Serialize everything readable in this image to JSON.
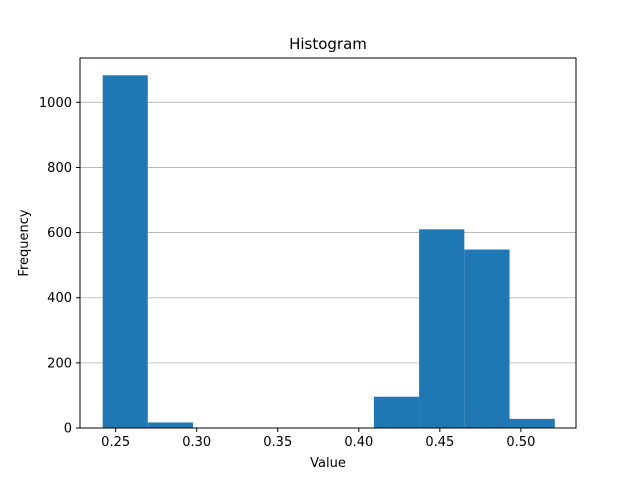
{
  "chart_data": {
    "type": "bar",
    "title": "Histogram",
    "xlabel": "Value",
    "ylabel": "Frequency",
    "xlim": [
      0.228,
      0.534
    ],
    "ylim": [
      0,
      1136
    ],
    "grid": {
      "x": false,
      "y": true
    },
    "bar_color": "#1f77b4",
    "grid_color": "#b0b0b0",
    "bins": [
      {
        "x0": 0.242,
        "x1": 0.2698,
        "count": 1083
      },
      {
        "x0": 0.2698,
        "x1": 0.2977,
        "count": 17
      },
      {
        "x0": 0.2977,
        "x1": 0.3256,
        "count": 0
      },
      {
        "x0": 0.3256,
        "x1": 0.3535,
        "count": 0
      },
      {
        "x0": 0.3535,
        "x1": 0.3814,
        "count": 0
      },
      {
        "x0": 0.3814,
        "x1": 0.4093,
        "count": 0
      },
      {
        "x0": 0.4093,
        "x1": 0.4372,
        "count": 96
      },
      {
        "x0": 0.4372,
        "x1": 0.4651,
        "count": 610
      },
      {
        "x0": 0.4651,
        "x1": 0.493,
        "count": 548
      },
      {
        "x0": 0.493,
        "x1": 0.5209,
        "count": 28
      }
    ],
    "x_ticks": [
      {
        "value": 0.25,
        "label": "0.25"
      },
      {
        "value": 0.3,
        "label": "0.30"
      },
      {
        "value": 0.35,
        "label": "0.35"
      },
      {
        "value": 0.4,
        "label": "0.40"
      },
      {
        "value": 0.45,
        "label": "0.45"
      },
      {
        "value": 0.5,
        "label": "0.50"
      }
    ],
    "y_ticks": [
      {
        "value": 0,
        "label": "0"
      },
      {
        "value": 200,
        "label": "200"
      },
      {
        "value": 400,
        "label": "400"
      },
      {
        "value": 600,
        "label": "600"
      },
      {
        "value": 800,
        "label": "800"
      },
      {
        "value": 1000,
        "label": "1000"
      }
    ]
  }
}
